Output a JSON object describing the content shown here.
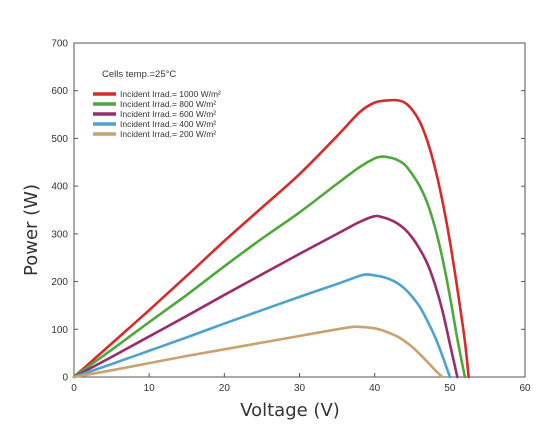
{
  "chart_data": {
    "type": "line",
    "xlabel": "Voltage (V)",
    "ylabel": "Power (W)",
    "xlim": [
      0,
      60
    ],
    "ylim": [
      0,
      700
    ],
    "xticks": [
      0,
      10,
      20,
      30,
      40,
      50,
      60
    ],
    "yticks": [
      0,
      100,
      200,
      300,
      400,
      500,
      600,
      700
    ],
    "grid": false,
    "annotation": "Cells temp.=25°C",
    "legend_position": "top-left",
    "series": [
      {
        "name": "Incident Irrad.= 1000 W/m²",
        "color": "#d62b2b",
        "x": [
          0,
          5,
          10,
          15,
          20,
          25,
          30,
          35,
          38,
          40,
          42,
          43,
          44,
          45,
          46,
          47,
          48,
          49,
          50,
          51,
          52,
          52.5
        ],
        "y": [
          0,
          70,
          140,
          212,
          285,
          355,
          425,
          505,
          555,
          575,
          580,
          580,
          575,
          560,
          535,
          495,
          440,
          370,
          285,
          185,
          75,
          0
        ]
      },
      {
        "name": "Incident Irrad.= 800 W/m²",
        "color": "#4fa83d",
        "x": [
          0,
          5,
          10,
          15,
          20,
          25,
          30,
          35,
          38,
          40,
          41,
          42,
          43,
          44,
          45,
          46,
          47,
          48,
          49,
          50,
          51,
          52
        ],
        "y": [
          0,
          57,
          115,
          172,
          232,
          290,
          345,
          405,
          440,
          458,
          462,
          460,
          455,
          445,
          425,
          400,
          365,
          315,
          250,
          170,
          80,
          0
        ]
      },
      {
        "name": "Incident Irrad.= 600 W/m²",
        "color": "#9b2b6b",
        "x": [
          0,
          5,
          10,
          15,
          20,
          25,
          30,
          35,
          38,
          40,
          41,
          42,
          43,
          44,
          45,
          46,
          47,
          48,
          49,
          50,
          51
        ],
        "y": [
          0,
          42,
          85,
          128,
          172,
          215,
          258,
          300,
          325,
          337,
          335,
          330,
          322,
          310,
          292,
          268,
          238,
          195,
          140,
          70,
          0
        ]
      },
      {
        "name": "Incident Irrad.= 400 W/m²",
        "color": "#4ea2cc",
        "x": [
          0,
          5,
          10,
          15,
          20,
          25,
          30,
          35,
          38,
          39,
          40,
          41,
          42,
          43,
          44,
          45,
          46,
          47,
          48,
          49,
          50
        ],
        "y": [
          0,
          27,
          55,
          83,
          112,
          140,
          168,
          195,
          212,
          215,
          213,
          210,
          205,
          197,
          185,
          168,
          147,
          118,
          85,
          45,
          0
        ]
      },
      {
        "name": "Incident Irrad.= 200 W/m²",
        "color": "#c9a26e",
        "x": [
          0,
          5,
          10,
          15,
          20,
          25,
          30,
          35,
          37,
          38,
          39,
          40,
          41,
          42,
          43,
          44,
          45,
          46,
          47,
          48,
          49
        ],
        "y": [
          0,
          14,
          29,
          44,
          58,
          72,
          86,
          100,
          105,
          105,
          104,
          102,
          98,
          92,
          85,
          75,
          63,
          48,
          32,
          15,
          0
        ]
      }
    ]
  }
}
